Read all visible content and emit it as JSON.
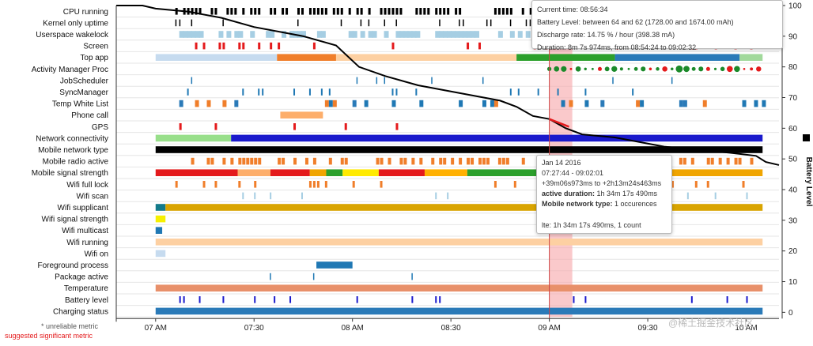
{
  "chart_data": {
    "type": "timeline",
    "title": "",
    "x_ticks": [
      "07 AM",
      "07:30",
      "08 AM",
      "08:30",
      "09 AM",
      "09:30",
      "10 AM"
    ],
    "x_tick_minutes": [
      0,
      30,
      60,
      90,
      120,
      150,
      180
    ],
    "x_start_minutes": -12,
    "x_end_minutes": 190,
    "right_axis": {
      "label": "Battery Level",
      "ticks": [
        0,
        10,
        20,
        30,
        40,
        50,
        60,
        70,
        80,
        90,
        100
      ]
    },
    "battery_level": [
      [
        -12,
        100
      ],
      [
        -4,
        100
      ],
      [
        0,
        99
      ],
      [
        10,
        98
      ],
      [
        20,
        96
      ],
      [
        30,
        93
      ],
      [
        45,
        90
      ],
      [
        55,
        87
      ],
      [
        62,
        80
      ],
      [
        70,
        77
      ],
      [
        80,
        74
      ],
      [
        95,
        71
      ],
      [
        105,
        69
      ],
      [
        110,
        67
      ],
      [
        115,
        64
      ],
      [
        120,
        63
      ],
      [
        125,
        60
      ],
      [
        130,
        58
      ],
      [
        140,
        57
      ],
      [
        150,
        55
      ],
      [
        155,
        54
      ],
      [
        165,
        53
      ],
      [
        175,
        52
      ],
      [
        183,
        51
      ],
      [
        186,
        49
      ],
      [
        190,
        48
      ]
    ],
    "rows": [
      {
        "label": "CPU running"
      },
      {
        "label": "Kernel only uptime"
      },
      {
        "label": "Userspace wakelock"
      },
      {
        "label": "Screen"
      },
      {
        "label": "Top app"
      },
      {
        "label": "Activity Manager Proc"
      },
      {
        "label": "JobScheduler"
      },
      {
        "label": "SyncManager"
      },
      {
        "label": "Temp White List"
      },
      {
        "label": "Phone call"
      },
      {
        "label": "GPS"
      },
      {
        "label": "Network connectivity"
      },
      {
        "label": "Mobile network type"
      },
      {
        "label": "Mobile radio active"
      },
      {
        "label": "Mobile signal strength"
      },
      {
        "label": "Wifi full lock"
      },
      {
        "label": "Wifi scan"
      },
      {
        "label": "Wifi supplicant"
      },
      {
        "label": "Wifi signal strength"
      },
      {
        "label": "Wifi multicast"
      },
      {
        "label": "Wifi running"
      },
      {
        "label": "Wifi on"
      },
      {
        "label": "Foreground process"
      },
      {
        "label": "Package active"
      },
      {
        "label": "Temperature"
      },
      {
        "label": "Battery level"
      },
      {
        "label": "Charging status"
      }
    ],
    "highlight_range_minutes": [
      120,
      127
    ],
    "cursor_minutes": 120
  },
  "legend": {
    "unreliable": "* unreliable metric",
    "significant": "suggested significant metric"
  },
  "tooltip_battery": {
    "line1": "Current time: 08:56:34",
    "line2": "Battery Level: between 64 and 62 (1728.00 and 1674.00 mAh)",
    "line3": "Discharge rate: 14.75 % / hour (398.38 mA)",
    "line4": "Duration: 8m 7s 974ms, from 08:54:24 to 09:02:32"
  },
  "tooltip_network": {
    "date": "Jan 14 2016",
    "range": "07:27:44 - 09:02:01",
    "offset": "+39m06s973ms to +2h13m24s463ms",
    "active_label": "active duration:",
    "active_value": " 1h 34m 17s 490ms",
    "type_label": "Mobile network type:",
    "type_value": " 1 occurences",
    "detail": "lte: 1h 34m 17s 490ms, 1 count"
  },
  "watermark": "@稀土掘金技术社区",
  "colors": {
    "red": "#e41a1c",
    "blue": "#1f78b4",
    "green": "#2ca02c",
    "orange": "#f07e2a",
    "lightblue": "#a6cee3",
    "black": "#000000",
    "navy": "#1a1acc",
    "gold": "#d9a400"
  }
}
